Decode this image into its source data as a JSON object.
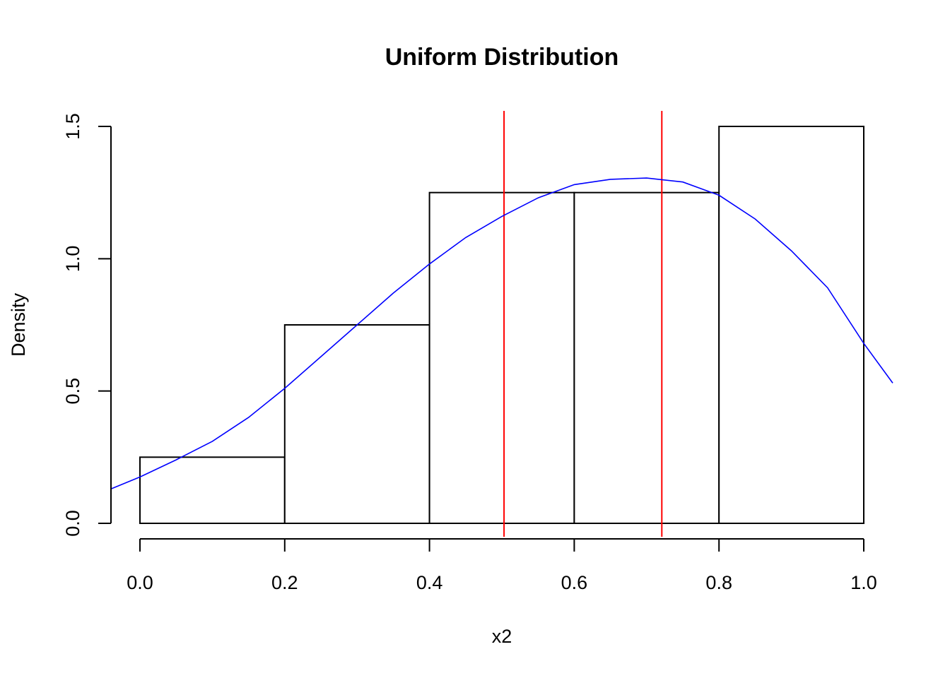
{
  "chart_data": {
    "type": "histogram",
    "title": "Uniform Distribution",
    "xlabel": "x2",
    "ylabel": "Density",
    "xlim": [
      -0.04,
      1.04
    ],
    "ylim": [
      0,
      1.5
    ],
    "x_ticks": [
      "0.0",
      "0.2",
      "0.4",
      "0.6",
      "0.8",
      "1.0"
    ],
    "y_ticks": [
      "0.0",
      "0.5",
      "1.0",
      "1.5"
    ],
    "bins": [
      {
        "from": 0.0,
        "to": 0.2,
        "density": 0.25
      },
      {
        "from": 0.2,
        "to": 0.4,
        "density": 0.75
      },
      {
        "from": 0.4,
        "to": 0.6,
        "density": 1.25
      },
      {
        "from": 0.6,
        "to": 0.8,
        "density": 1.25
      },
      {
        "from": 0.8,
        "to": 1.0,
        "density": 1.5
      }
    ],
    "vlines": [
      0.503,
      0.721
    ],
    "vline_color": "#ff0000",
    "density_curve": {
      "color": "#0000ff",
      "points": [
        [
          -0.04,
          0.13
        ],
        [
          0.0,
          0.175
        ],
        [
          0.05,
          0.24
        ],
        [
          0.1,
          0.31
        ],
        [
          0.15,
          0.4
        ],
        [
          0.2,
          0.51
        ],
        [
          0.25,
          0.63
        ],
        [
          0.3,
          0.75
        ],
        [
          0.35,
          0.87
        ],
        [
          0.4,
          0.98
        ],
        [
          0.45,
          1.08
        ],
        [
          0.5,
          1.16
        ],
        [
          0.55,
          1.23
        ],
        [
          0.6,
          1.28
        ],
        [
          0.65,
          1.3
        ],
        [
          0.7,
          1.305
        ],
        [
          0.75,
          1.29
        ],
        [
          0.8,
          1.24
        ],
        [
          0.85,
          1.15
        ],
        [
          0.9,
          1.03
        ],
        [
          0.95,
          0.89
        ],
        [
          1.0,
          0.68
        ],
        [
          1.04,
          0.53
        ]
      ]
    },
    "bar_fill": "#ffffff",
    "bar_stroke": "#000000"
  }
}
